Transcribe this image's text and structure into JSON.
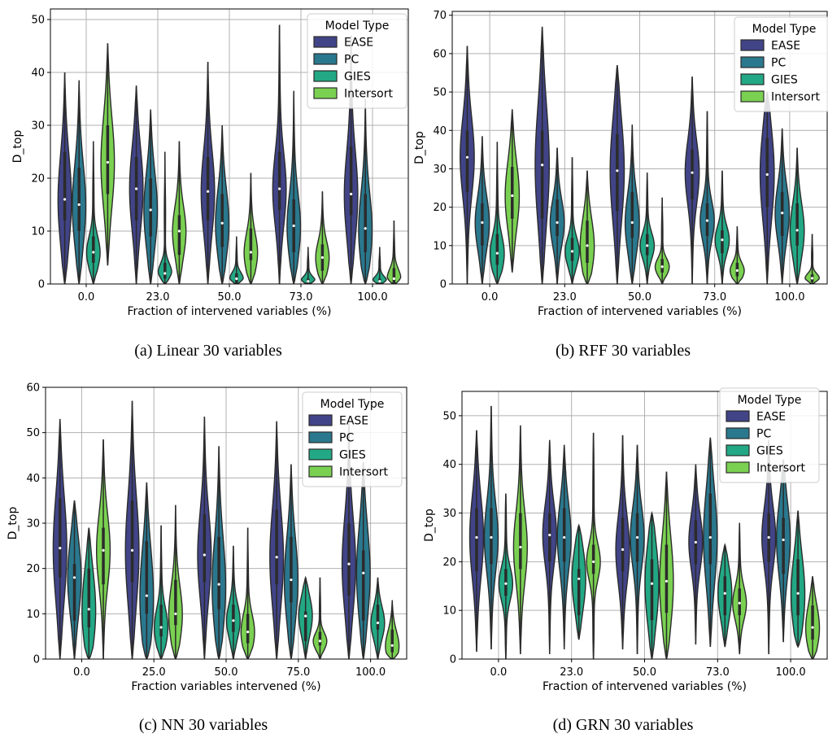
{
  "colors": {
    "EASE": "#414487",
    "PC": "#2a788e",
    "GIES": "#22a884",
    "Intersort": "#7ad151",
    "outline": "#2b2b2b",
    "grid": "#b0b0b0"
  },
  "chart_data": [
    {
      "type": "violin",
      "caption": "(a) Linear 30 variables",
      "xlabel": "Fraction of intervened variables (%)",
      "ylabel": "D_top",
      "ylim": [
        0,
        52
      ],
      "yticks": [
        0,
        10,
        20,
        30,
        40,
        50
      ],
      "grid": true,
      "legend": {
        "title": "Model Type",
        "placement": "top-right"
      },
      "categories": [
        "0.0",
        "23.0",
        "50.0",
        "73.0",
        "100.0"
      ],
      "series": [
        {
          "name": "EASE",
          "stats": [
            {
              "min": 0,
              "q1": 12,
              "median": 16,
              "q3": 25,
              "max": 40
            },
            {
              "min": 0,
              "q1": 12,
              "median": 18,
              "q3": 24,
              "max": 37.5
            },
            {
              "min": 0,
              "q1": 12,
              "median": 17.5,
              "q3": 24,
              "max": 42
            },
            {
              "min": 0,
              "q1": 14,
              "median": 18,
              "q3": 25,
              "max": 49
            },
            {
              "min": 0,
              "q1": 13,
              "median": 17,
              "q3": 26,
              "max": 47
            }
          ]
        },
        {
          "name": "PC",
          "stats": [
            {
              "min": 0,
              "q1": 10,
              "median": 15,
              "q3": 22,
              "max": 38.5
            },
            {
              "min": 0,
              "q1": 9,
              "median": 14,
              "q3": 20,
              "max": 33
            },
            {
              "min": 0,
              "q1": 7,
              "median": 11.5,
              "q3": 17,
              "max": 30
            },
            {
              "min": 0,
              "q1": 6,
              "median": 11,
              "q3": 16,
              "max": 36.5
            },
            {
              "min": 0,
              "q1": 6,
              "median": 10.5,
              "q3": 17,
              "max": 35
            }
          ]
        },
        {
          "name": "GIES",
          "stats": [
            {
              "min": 0,
              "q1": 4,
              "median": 6,
              "q3": 9,
              "max": 27
            },
            {
              "min": 0,
              "q1": 1,
              "median": 2,
              "q3": 4,
              "max": 25
            },
            {
              "min": 0,
              "q1": 0,
              "median": 1,
              "q3": 2,
              "max": 9
            },
            {
              "min": 0,
              "q1": 0,
              "median": 0.5,
              "q3": 1,
              "max": 7
            },
            {
              "min": 0,
              "q1": 0,
              "median": 0.5,
              "q3": 1,
              "max": 7
            }
          ]
        },
        {
          "name": "Intersort",
          "stats": [
            {
              "min": 3.5,
              "q1": 17,
              "median": 23,
              "q3": 30,
              "max": 45.5
            },
            {
              "min": 0,
              "q1": 5.5,
              "median": 10,
              "q3": 13,
              "max": 27
            },
            {
              "min": 0,
              "q1": 4.5,
              "median": 6,
              "q3": 10.5,
              "max": 21
            },
            {
              "min": 0,
              "q1": 2.5,
              "median": 5,
              "q3": 7.5,
              "max": 17.5
            },
            {
              "min": 0,
              "q1": 0,
              "median": 1,
              "q3": 3,
              "max": 12
            }
          ]
        }
      ]
    },
    {
      "type": "violin",
      "caption": "(b) RFF 30 variables",
      "xlabel": "Fraction of intervened variables (%)",
      "ylabel": "D_top",
      "ylim": [
        0,
        71
      ],
      "yticks": [
        0,
        10,
        20,
        30,
        40,
        50,
        60,
        70
      ],
      "grid": true,
      "legend": {
        "title": "Model Type",
        "placement": "top-right"
      },
      "categories": [
        "0.0",
        "23.0",
        "50.0",
        "73.0",
        "100.0"
      ],
      "series": [
        {
          "name": "EASE",
          "stats": [
            {
              "min": 0,
              "q1": 24,
              "median": 33,
              "q3": 40,
              "max": 62
            },
            {
              "min": 0,
              "q1": 17,
              "median": 31,
              "q3": 40,
              "max": 67
            },
            {
              "min": 0,
              "q1": 19,
              "median": 29.5,
              "q3": 39,
              "max": 57
            },
            {
              "min": 0,
              "q1": 22,
              "median": 29,
              "q3": 35,
              "max": 54
            },
            {
              "min": 0,
              "q1": 20,
              "median": 28.5,
              "q3": 38,
              "max": 50
            }
          ]
        },
        {
          "name": "PC",
          "stats": [
            {
              "min": 0,
              "q1": 10,
              "median": 16,
              "q3": 21,
              "max": 38.5
            },
            {
              "min": 0,
              "q1": 12.5,
              "median": 16,
              "q3": 22,
              "max": 35.5
            },
            {
              "min": 0,
              "q1": 12,
              "median": 16,
              "q3": 24,
              "max": 41.5
            },
            {
              "min": 0,
              "q1": 12.5,
              "median": 16.5,
              "q3": 21,
              "max": 45
            },
            {
              "min": 0,
              "q1": 12.5,
              "median": 18.5,
              "q3": 24,
              "max": 40.5
            }
          ]
        },
        {
          "name": "GIES",
          "stats": [
            {
              "min": 0,
              "q1": 5,
              "median": 8,
              "q3": 13,
              "max": 37
            },
            {
              "min": 0,
              "q1": 6,
              "median": 8.5,
              "q3": 12,
              "max": 33
            },
            {
              "min": 0,
              "q1": 7.5,
              "median": 10,
              "q3": 13,
              "max": 29
            },
            {
              "min": 0,
              "q1": 8,
              "median": 11.5,
              "q3": 14,
              "max": 29.5
            },
            {
              "min": 0,
              "q1": 10,
              "median": 14,
              "q3": 21,
              "max": 35.5
            }
          ]
        },
        {
          "name": "Intersort",
          "stats": [
            {
              "min": 3,
              "q1": 17,
              "median": 23,
              "q3": 30.5,
              "max": 45.5
            },
            {
              "min": 0,
              "q1": 5.5,
              "median": 10,
              "q3": 16.5,
              "max": 29.5
            },
            {
              "min": 0,
              "q1": 3,
              "median": 4.5,
              "q3": 6.5,
              "max": 22.5
            },
            {
              "min": 0,
              "q1": 2,
              "median": 3.5,
              "q3": 5.5,
              "max": 15
            },
            {
              "min": 0,
              "q1": 0.5,
              "median": 1.5,
              "q3": 2.5,
              "max": 13
            }
          ]
        }
      ]
    },
    {
      "type": "violin",
      "caption": "(c) NN 30 variables",
      "xlabel": "Fraction variables intervened (%)",
      "ylabel": "D_top",
      "ylim": [
        0,
        60
      ],
      "yticks": [
        0,
        10,
        20,
        30,
        40,
        50,
        60
      ],
      "grid": true,
      "legend": {
        "title": "Model Type",
        "placement": "top-right"
      },
      "categories": [
        "0.0",
        "25.0",
        "50.0",
        "75.0",
        "100.0"
      ],
      "series": [
        {
          "name": "EASE",
          "stats": [
            {
              "min": 0,
              "q1": 18,
              "median": 24.5,
              "q3": 35.5,
              "max": 53
            },
            {
              "min": 0,
              "q1": 17,
              "median": 24,
              "q3": 35,
              "max": 57
            },
            {
              "min": 0,
              "q1": 17,
              "median": 23,
              "q3": 32,
              "max": 53.5
            },
            {
              "min": 0,
              "q1": 16.5,
              "median": 22.5,
              "q3": 33,
              "max": 52.5
            },
            {
              "min": 0,
              "q1": 14,
              "median": 21,
              "q3": 30,
              "max": 52
            }
          ]
        },
        {
          "name": "PC",
          "stats": [
            {
              "min": 0,
              "q1": 8.5,
              "median": 18,
              "q3": 21,
              "max": 35
            },
            {
              "min": 0,
              "q1": 10,
              "median": 14,
              "q3": 26,
              "max": 39
            },
            {
              "min": 0,
              "q1": 11,
              "median": 16.5,
              "q3": 27,
              "max": 47
            },
            {
              "min": 0,
              "q1": 12.5,
              "median": 17.5,
              "q3": 27,
              "max": 43
            },
            {
              "min": 0,
              "q1": 8.5,
              "median": 19,
              "q3": 24,
              "max": 43.5
            }
          ]
        },
        {
          "name": "GIES",
          "stats": [
            {
              "min": 0,
              "q1": 7,
              "median": 11,
              "q3": 20,
              "max": 29
            },
            {
              "min": 0,
              "q1": 5,
              "median": 7,
              "q3": 12,
              "max": 29.5
            },
            {
              "min": 0,
              "q1": 6,
              "median": 8.5,
              "q3": 12,
              "max": 25
            },
            {
              "min": 0,
              "q1": 4,
              "median": 9.5,
              "q3": 10.5,
              "max": 18
            },
            {
              "min": 0,
              "q1": 6.5,
              "median": 8,
              "q3": 12,
              "max": 18
            }
          ]
        },
        {
          "name": "Intersort",
          "stats": [
            {
              "min": 0,
              "q1": 16.5,
              "median": 24,
              "q3": 29,
              "max": 48.5
            },
            {
              "min": 0,
              "q1": 7.5,
              "median": 10,
              "q3": 17.5,
              "max": 34
            },
            {
              "min": 0,
              "q1": 3.5,
              "median": 6,
              "q3": 10,
              "max": 29
            },
            {
              "min": 0,
              "q1": 3,
              "median": 4,
              "q3": 6,
              "max": 18
            },
            {
              "min": 0,
              "q1": 1.5,
              "median": 3,
              "q3": 6.5,
              "max": 13
            }
          ]
        }
      ]
    },
    {
      "type": "violin",
      "caption": "(d) GRN 30 variables",
      "xlabel": "Fraction of intervened variables (%)",
      "ylabel": "D_top",
      "ylim": [
        0,
        55
      ],
      "yticks": [
        0,
        10,
        20,
        30,
        40,
        50
      ],
      "grid": true,
      "legend": {
        "title": "Model Type",
        "placement": "top-right"
      },
      "categories": [
        "0.0",
        "23.0",
        "50.0",
        "73.0",
        "100.0"
      ],
      "series": [
        {
          "name": "EASE",
          "stats": [
            {
              "min": 1.5,
              "q1": 18,
              "median": 25,
              "q3": 31,
              "max": 47
            },
            {
              "min": 1,
              "q1": 20,
              "median": 25.5,
              "q3": 30,
              "max": 45
            },
            {
              "min": 2,
              "q1": 18,
              "median": 22.5,
              "q3": 29,
              "max": 46
            },
            {
              "min": 3,
              "q1": 19.5,
              "median": 24,
              "q3": 28.5,
              "max": 40
            },
            {
              "min": 1,
              "q1": 20,
              "median": 25,
              "q3": 30,
              "max": 45
            }
          ]
        },
        {
          "name": "PC",
          "stats": [
            {
              "min": 2,
              "q1": 19.5,
              "median": 25,
              "q3": 31,
              "max": 52
            },
            {
              "min": 2,
              "q1": 20,
              "median": 25,
              "q3": 31,
              "max": 44
            },
            {
              "min": 1,
              "q1": 20,
              "median": 25,
              "q3": 30,
              "max": 44
            },
            {
              "min": 2.5,
              "q1": 19.5,
              "median": 25,
              "q3": 34,
              "max": 45.5
            },
            {
              "min": 3.5,
              "q1": 17.5,
              "median": 24.5,
              "q3": 29,
              "max": 41
            }
          ]
        },
        {
          "name": "GIES",
          "stats": [
            {
              "min": 0,
              "q1": 13,
              "median": 15.5,
              "q3": 18.5,
              "max": 34
            },
            {
              "min": 4,
              "q1": 9,
              "median": 16.5,
              "q3": 18.5,
              "max": 27.5
            },
            {
              "min": 0,
              "q1": 8,
              "median": 15.5,
              "q3": 20.5,
              "max": 30
            },
            {
              "min": 2.5,
              "q1": 9,
              "median": 13.5,
              "q3": 17,
              "max": 23.5
            },
            {
              "min": 2.5,
              "q1": 9,
              "median": 13.5,
              "q3": 20.5,
              "max": 30.5
            }
          ]
        },
        {
          "name": "Intersort",
          "stats": [
            {
              "min": 1,
              "q1": 18.5,
              "median": 23,
              "q3": 30,
              "max": 48
            },
            {
              "min": 0,
              "q1": 17.5,
              "median": 20,
              "q3": 23.5,
              "max": 46.5
            },
            {
              "min": 0,
              "q1": 9.5,
              "median": 16,
              "q3": 23.5,
              "max": 38.5
            },
            {
              "min": 1,
              "q1": 9,
              "median": 11.5,
              "q3": 14.5,
              "max": 28
            },
            {
              "min": 0,
              "q1": 4,
              "median": 6.5,
              "q3": 11,
              "max": 17
            }
          ]
        }
      ]
    }
  ]
}
